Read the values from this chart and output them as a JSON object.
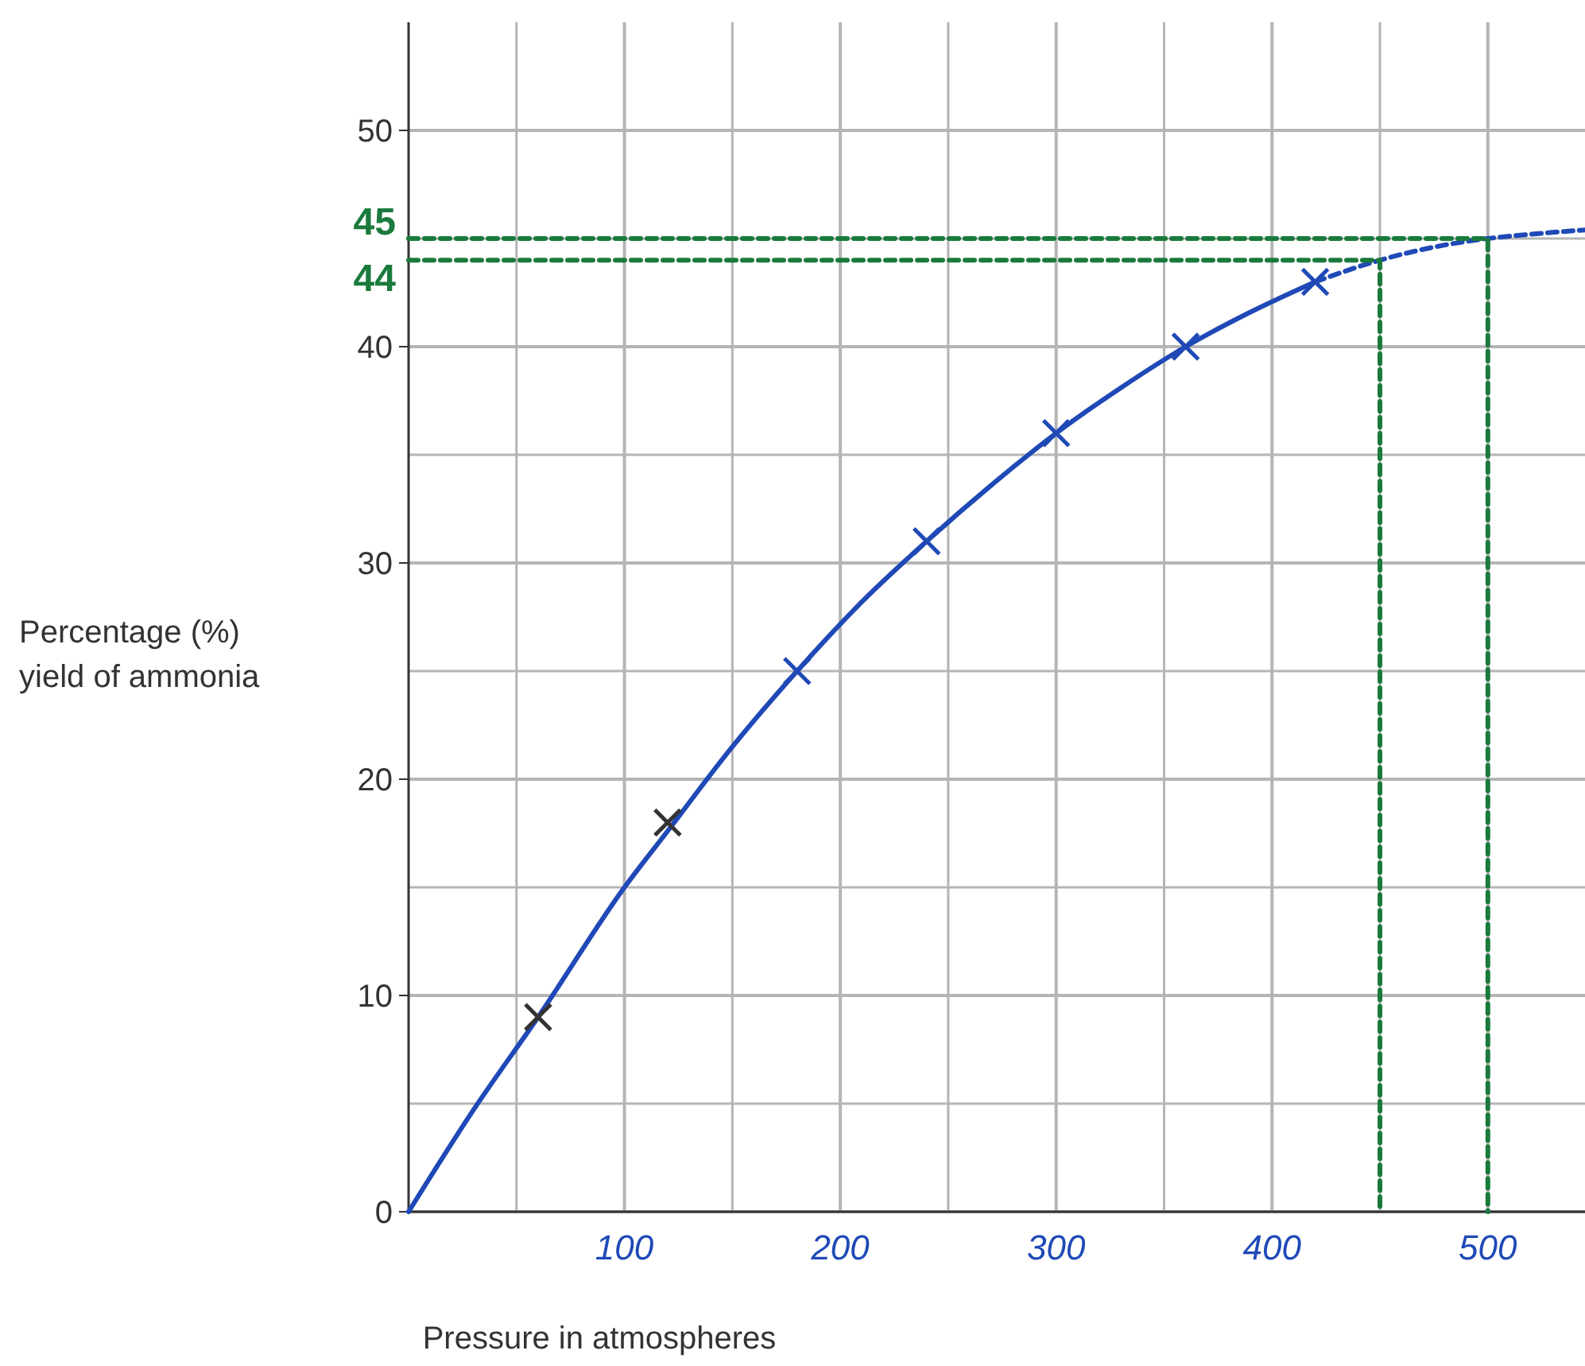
{
  "chart_data": {
    "type": "scatter",
    "xlabel": "Pressure in atmospheres",
    "ylabel": "Percentage (%)\nyield of ammonia",
    "xlim": [
      0,
      545
    ],
    "ylim": [
      0,
      55
    ],
    "xticks": [
      {
        "value": 50,
        "label": null
      },
      100,
      {
        "value": 150,
        "label": null
      },
      200,
      {
        "value": 250,
        "label": null
      },
      300,
      {
        "value": 350,
        "label": null
      },
      400,
      {
        "value": 450,
        "label": null
      },
      500
    ],
    "yticks": [
      0,
      {
        "value": 5,
        "label": null
      },
      10,
      {
        "value": 15,
        "label": null
      },
      20,
      {
        "value": 25,
        "label": null
      },
      30,
      {
        "value": 35,
        "label": null
      },
      40,
      {
        "value": 45,
        "label": null
      },
      50
    ],
    "grid": true,
    "marker": "cross",
    "series": [
      {
        "type": "line",
        "color": "#1f49b6",
        "line_style": "solid",
        "marker": "none",
        "x": [
          0,
          30,
          60,
          100,
          120,
          150,
          180,
          210,
          240,
          270,
          300,
          330,
          360,
          390,
          420
        ],
        "values": [
          0,
          4.7,
          9,
          15,
          17.6,
          21.5,
          25,
          28.2,
          31,
          33.6,
          36,
          38.1,
          40,
          41.6,
          43
        ]
      },
      {
        "type": "line",
        "color": "#1f49b6",
        "line_style": "dashed",
        "marker": "none",
        "x": [
          420,
          450,
          480,
          500,
          520,
          545
        ],
        "values": [
          43,
          44,
          44.7,
          45,
          45.2,
          45.4
        ]
      },
      {
        "type": "line",
        "color": "#1a7a3c",
        "line_style": "dashed",
        "marker": "none",
        "x": [
          0,
          450,
          450
        ],
        "values": [
          44,
          44,
          0
        ]
      },
      {
        "type": "line",
        "color": "#1a7a3c",
        "line_style": "dashed",
        "marker": "none",
        "x": [
          0,
          500,
          500
        ],
        "values": [
          45,
          45,
          0
        ]
      },
      {
        "color": "#333333",
        "x": [
          60,
          120
        ],
        "values": [
          9,
          18
        ]
      },
      {
        "color": "#1f49b6",
        "x": [
          180,
          240,
          300,
          360,
          420
        ],
        "values": [
          25,
          31,
          36,
          40,
          43
        ]
      }
    ],
    "annotations": [
      {
        "text": "45",
        "x": 0,
        "y": 45
      },
      {
        "text": "44",
        "x": 0,
        "y": 44
      }
    ]
  }
}
